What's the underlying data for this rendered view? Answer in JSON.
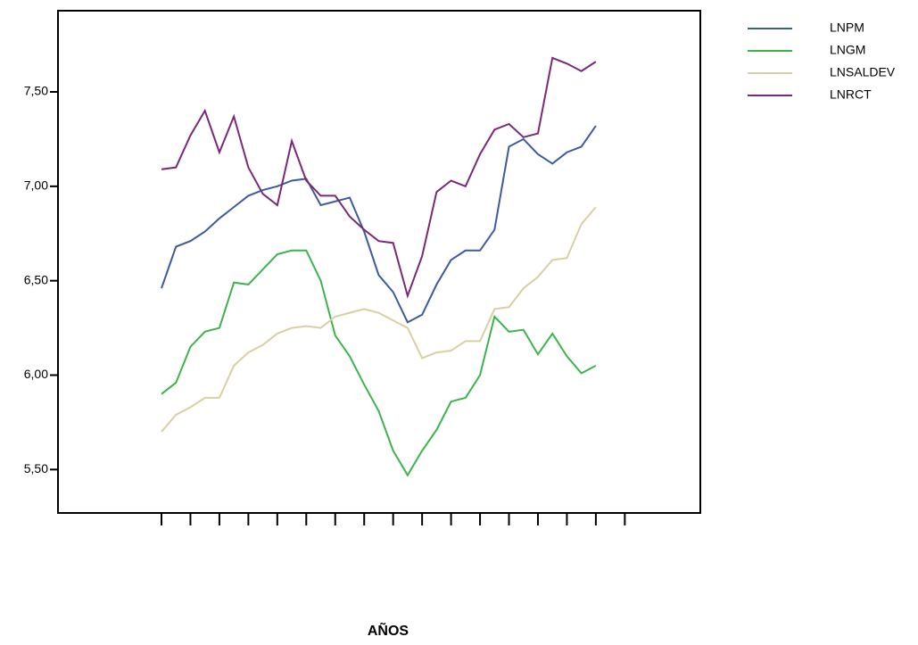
{
  "chart_data": {
    "type": "line",
    "x_label": "AÑOS",
    "categories": [
      null,
      null,
      null,
      null,
      null,
      null,
      null,
      null,
      null,
      null,
      null,
      null,
      null,
      null,
      null,
      null,
      null,
      null,
      null,
      null,
      null,
      null,
      null,
      null,
      null,
      null,
      null,
      null,
      null,
      null,
      null
    ],
    "series": [
      {
        "name": "LNPM",
        "color": "#3c5aa0",
        "values": [
          6.46,
          6.68,
          6.71,
          6.76,
          6.83,
          6.89,
          6.95,
          6.98,
          7.0,
          7.03,
          7.04,
          6.9,
          6.92,
          6.94,
          6.76,
          6.53,
          6.44,
          6.28,
          6.32,
          6.48,
          6.61,
          6.66,
          6.66,
          6.77,
          7.21,
          7.25,
          7.17,
          7.12,
          7.18,
          7.21,
          7.32
        ]
      },
      {
        "name": "LNGM",
        "color": "#3cb44b",
        "values": [
          5.9,
          5.96,
          6.15,
          6.23,
          6.25,
          6.49,
          6.48,
          6.56,
          6.64,
          6.66,
          6.66,
          6.5,
          6.21,
          6.1,
          5.95,
          5.81,
          5.6,
          5.47,
          5.6,
          5.71,
          5.86,
          5.88,
          6.0,
          6.31,
          6.23,
          6.24,
          6.11,
          6.22,
          6.1,
          6.01,
          6.05
        ]
      },
      {
        "name": "LNSALDEV",
        "color": "#d8d0a0",
        "values": [
          5.7,
          5.79,
          5.83,
          5.88,
          5.88,
          6.05,
          6.12,
          6.16,
          6.22,
          6.25,
          6.26,
          6.25,
          6.31,
          6.33,
          6.35,
          6.33,
          6.29,
          6.25,
          6.09,
          6.12,
          6.13,
          6.18,
          6.18,
          6.35,
          6.36,
          6.46,
          6.52,
          6.61,
          6.62,
          6.8,
          6.89
        ]
      },
      {
        "name": "LNRCT",
        "color": "#7a2878",
        "values": [
          7.09,
          7.1,
          7.27,
          7.4,
          7.18,
          7.37,
          7.1,
          6.96,
          6.9,
          7.24,
          7.03,
          6.95,
          6.95,
          6.84,
          6.77,
          6.71,
          6.7,
          6.42,
          6.63,
          6.97,
          7.03,
          7.0,
          7.17,
          7.3,
          7.33,
          7.26,
          7.28,
          7.68,
          7.65,
          7.61,
          7.66
        ]
      }
    ],
    "ylim": [
      5.27,
      7.93
    ],
    "yticks": [
      {
        "value": 5.5,
        "label": "5,50"
      },
      {
        "value": 6,
        "label": "6,00"
      },
      {
        "value": 6.5,
        "label": "6,50"
      },
      {
        "value": 7,
        "label": "7,00"
      },
      {
        "value": 7.5,
        "label": "7,50"
      }
    ],
    "legend": "top-right"
  }
}
